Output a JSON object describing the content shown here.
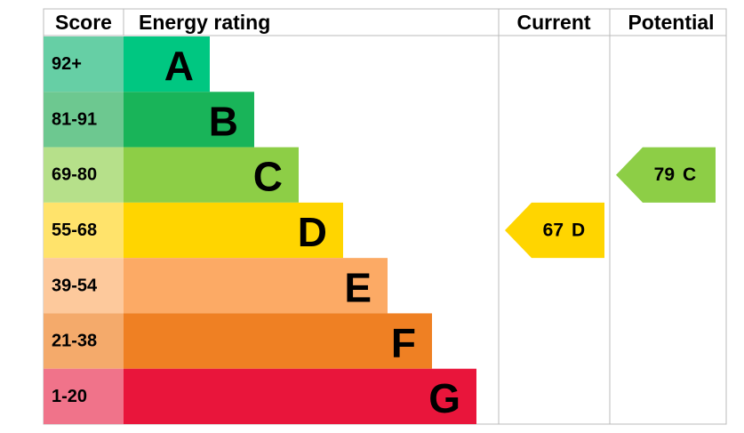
{
  "header": {
    "score": "Score",
    "rating": "Energy rating",
    "current": "Current",
    "potential": "Potential"
  },
  "bands": [
    {
      "score": "92+",
      "letter": "A",
      "color": "#00c781",
      "score_color": "#66cfa5"
    },
    {
      "score": "81-91",
      "letter": "B",
      "color": "#19b459",
      "score_color": "#6dc890"
    },
    {
      "score": "69-80",
      "letter": "C",
      "color": "#8dce46",
      "score_color": "#b6e08a"
    },
    {
      "score": "55-68",
      "letter": "D",
      "color": "#ffd500",
      "score_color": "#ffe36b"
    },
    {
      "score": "39-54",
      "letter": "E",
      "color": "#fcaa65",
      "score_color": "#fdc99c"
    },
    {
      "score": "21-38",
      "letter": "F",
      "color": "#ef8023",
      "score_color": "#f4aa6b"
    },
    {
      "score": "1-20",
      "letter": "G",
      "color": "#e9153b",
      "score_color": "#f0738a"
    }
  ],
  "current": {
    "value": 67,
    "letter": "D"
  },
  "potential": {
    "value": 79,
    "letter": "C"
  }
}
